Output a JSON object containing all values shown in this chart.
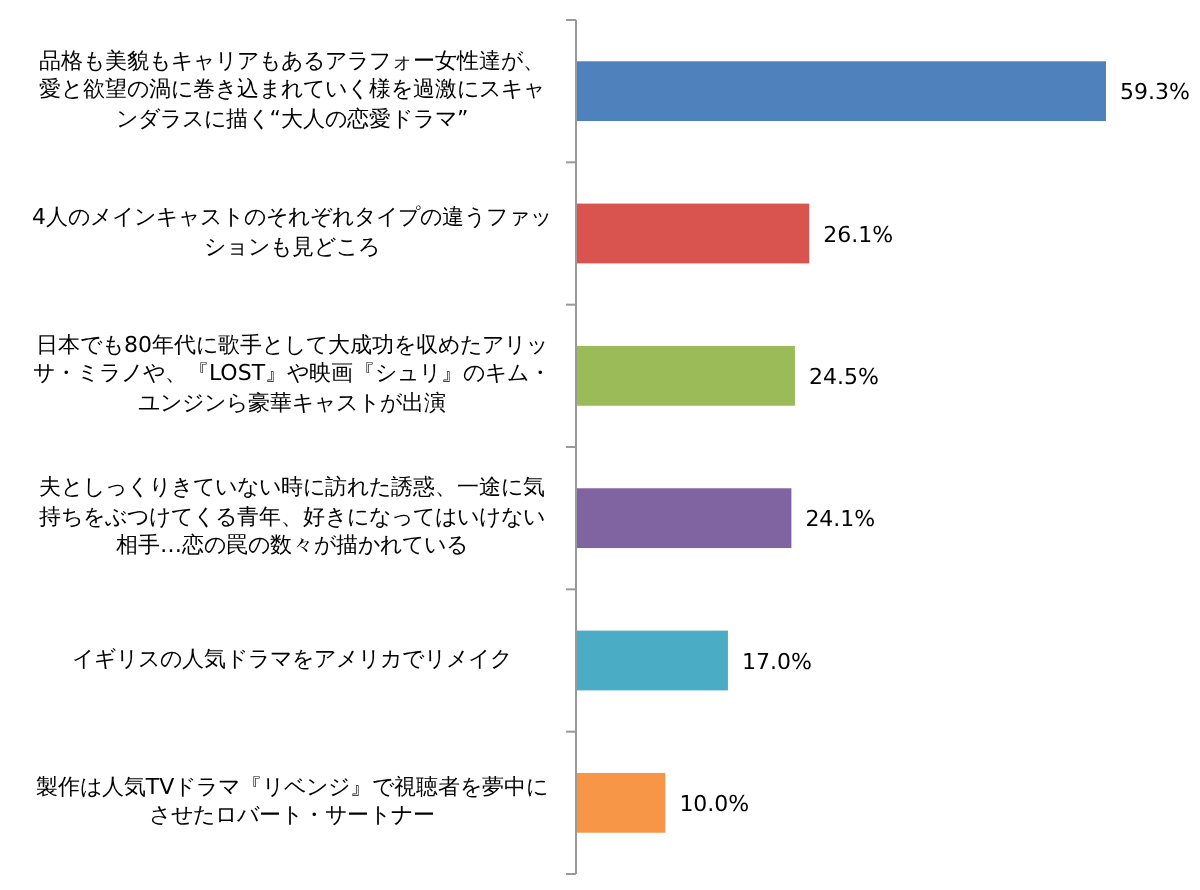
{
  "chart_data": {
    "type": "bar",
    "orientation": "horizontal",
    "categories": [
      "品格も美貌もキャリアもあるアラフォー女性達が、愛と欲望の渦に巻き込まれていく様を過激にスキャンダラスに描く“大人の恋愛ドラマ”",
      "4人のメインキャストのそれぞれタイプの違うファッションも見どころ",
      "日本でも80年代に歌手として大成功を収めたアリッサ・ミラノや、『LOST』や映画『シュリ』のキム・ユンジンら豪華キャストが出演",
      "夫としっくりきていない時に訪れた誘惑、一途に気持ちをぶつけてくる青年、好きになってはいけない相手…恋の罠の数々が描かれている",
      "イギリスの人気ドラマをアメリカでリメイク",
      "製作は人気TVドラマ『リベンジ』で視聴者を夢中にさせたロバート・サートナー"
    ],
    "values": [
      59.3,
      26.1,
      24.5,
      24.1,
      17.0,
      10.0
    ],
    "colors": [
      "#4f81bd",
      "#d9534f",
      "#9bbb59",
      "#8064a2",
      "#4bacc6",
      "#f79646"
    ],
    "value_labels": [
      "59.3%",
      "26.1%",
      "24.5%",
      "24.1%",
      "17.0%",
      "10.0%"
    ]
  }
}
